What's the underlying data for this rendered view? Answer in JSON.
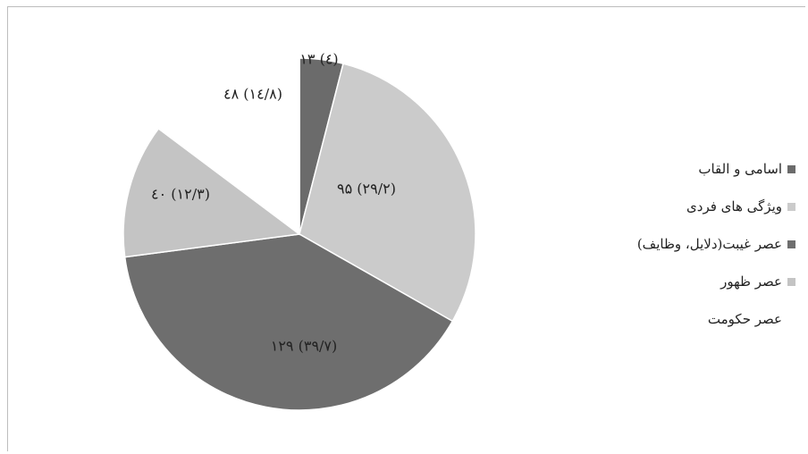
{
  "chart_data": {
    "type": "pie",
    "slices": [
      {
        "label": "اسامی و القاب",
        "value": 13,
        "display": "۱۳ (٤)",
        "color": "#6b6b6b"
      },
      {
        "label": "ویژگی های فردی",
        "value": 95,
        "display": "۹۵ (۲۹/۲)",
        "color": "#cbcbcb"
      },
      {
        "label": "عصر غیبت(دلایل، وظایف)",
        "value": 129,
        "display": "۱۲۹ (۳۹/۷)",
        "color": "#6e6e6e"
      },
      {
        "label": "عصر ظهور",
        "value": 40,
        "display": "٤۰ (۱۲/۳)",
        "color": "#c4c4c4"
      },
      {
        "label": "عصر حکومت",
        "value": 48,
        "display": "٤۸ (۱٤/۸)",
        "color": "#ffffff"
      }
    ],
    "start_angle": "12 o'clock",
    "direction": "clockwise",
    "legend_position": "right"
  }
}
